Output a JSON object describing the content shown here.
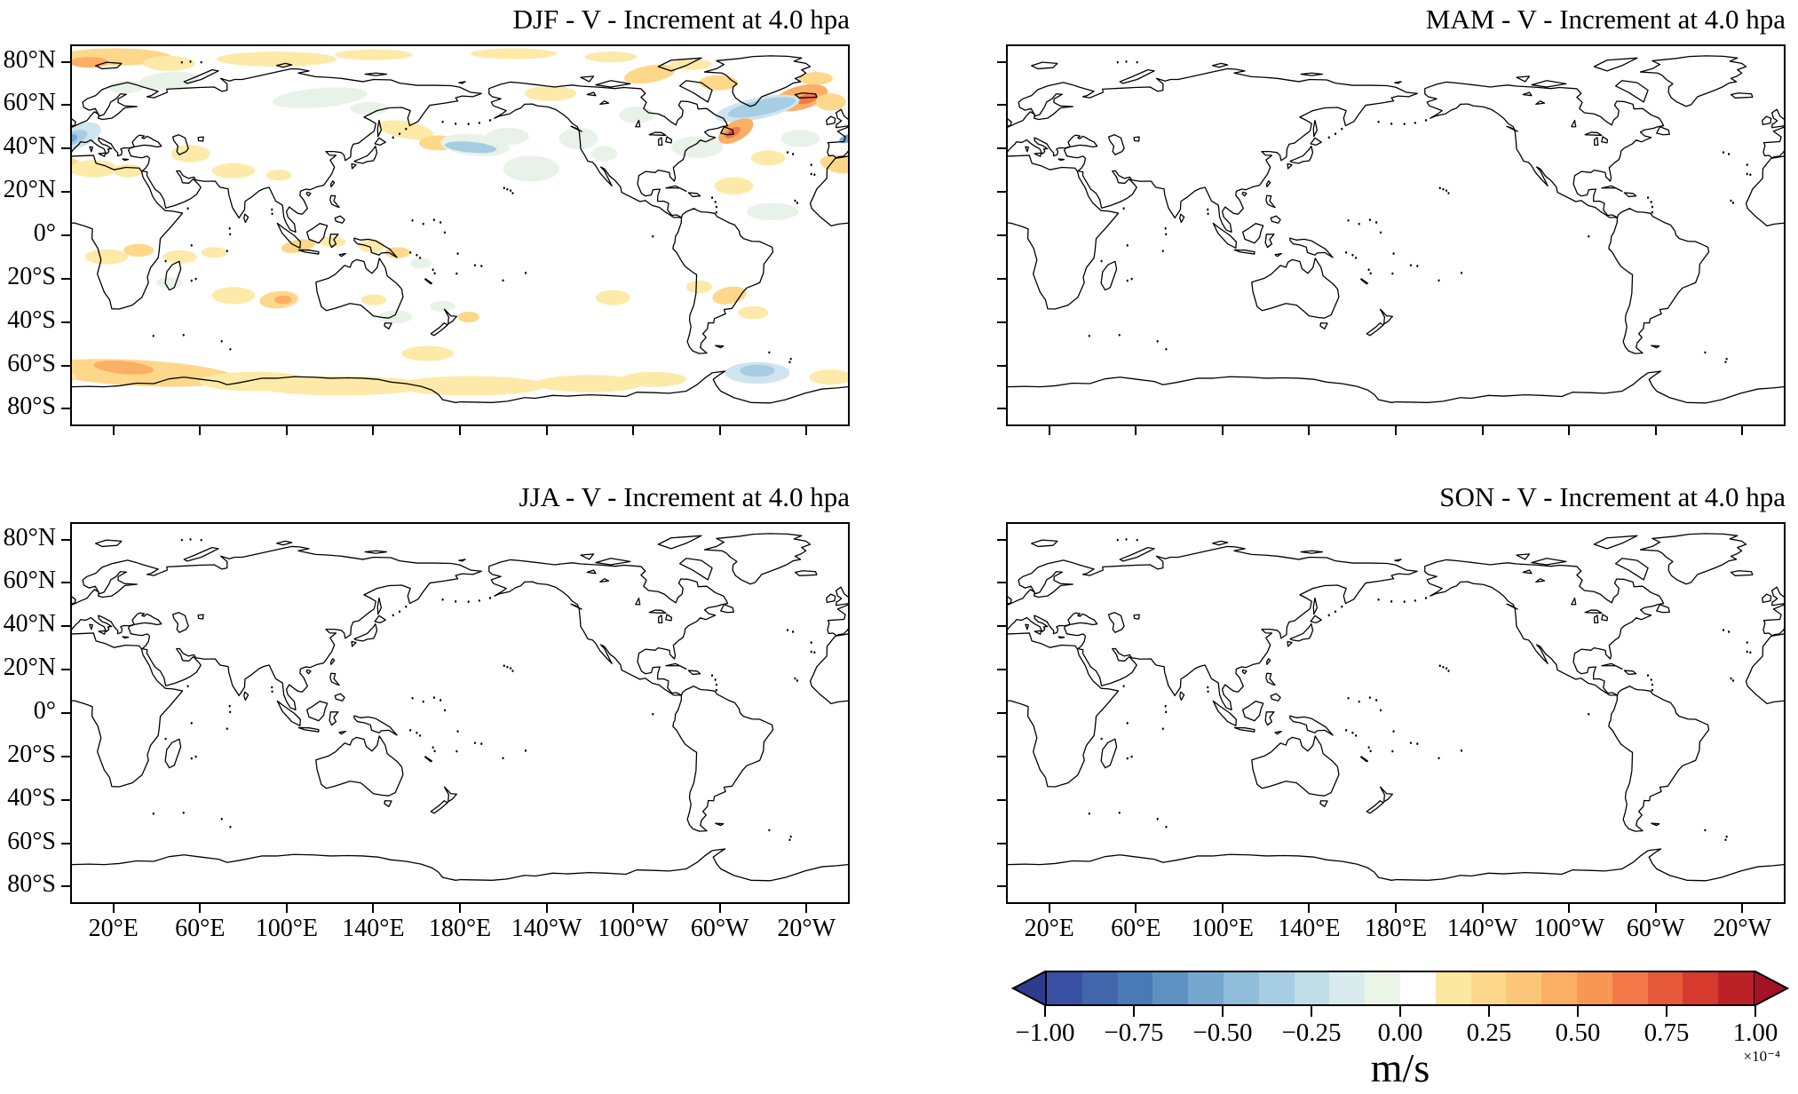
{
  "panels": [
    {
      "season": "DJF",
      "title": "DJF - V - Increment at 4.0 hpa"
    },
    {
      "season": "MAM",
      "title": "MAM - V - Increment at 4.0 hpa"
    },
    {
      "season": "JJA",
      "title": "JJA - V - Increment at 4.0 hpa"
    },
    {
      "season": "SON",
      "title": "SON - V - Increment at 4.0 hpa"
    }
  ],
  "axes": {
    "lat_tick_labels": [
      "80°N",
      "60°N",
      "40°N",
      "20°N",
      "0°",
      "20°S",
      "40°S",
      "60°S",
      "80°S"
    ],
    "lat_tick_values": [
      80,
      60,
      40,
      20,
      0,
      -20,
      -40,
      -60,
      -80
    ],
    "lon_tick_labels": [
      "20°E",
      "60°E",
      "100°E",
      "140°E",
      "180°E",
      "140°W",
      "100°W",
      "60°W",
      "20°W"
    ],
    "lon_tick_values": [
      20,
      60,
      100,
      140,
      180,
      220,
      260,
      300,
      340
    ]
  },
  "colorbar": {
    "unit": "m/s",
    "scale_note": "×10⁻⁴",
    "tick_labels": [
      "−1.00",
      "−0.75",
      "−0.50",
      "−0.25",
      "0.00",
      "0.25",
      "0.50",
      "0.75",
      "1.00"
    ],
    "tick_values": [
      -1.0,
      -0.75,
      -0.5,
      -0.25,
      0.0,
      0.25,
      0.5,
      0.75,
      1.0
    ],
    "segment_colors": [
      "#3a50a2",
      "#4166ac",
      "#4a7ab6",
      "#5f90c2",
      "#77a7ce",
      "#8fbcd9",
      "#a6cde1",
      "#c0dde8",
      "#d9ebec",
      "#ebf5e7",
      "#ffffff",
      "#fce8a0",
      "#fdd88a",
      "#fcc679",
      "#fbaf65",
      "#f89655",
      "#f37a48",
      "#e65a3a",
      "#d53a2c",
      "#bc2127"
    ],
    "arrow_left_color": "#2e3b8f",
    "arrow_right_color": "#a31227"
  },
  "chart_data": {
    "type": "map-contour",
    "projection": "equirectangular",
    "lon_range": [
      0,
      360
    ],
    "lat_range": [
      -88,
      88
    ],
    "variable": "V increment",
    "level_hpa": 4.0,
    "unit": "m/s",
    "value_scale": 0.0001,
    "contour_levels": [
      -1.0,
      -0.9,
      -0.8,
      -0.7,
      -0.6,
      -0.5,
      -0.4,
      -0.3,
      -0.2,
      -0.1,
      0.0,
      0.1,
      0.2,
      0.3,
      0.4,
      0.5,
      0.6,
      0.7,
      0.8,
      0.9,
      1.0
    ],
    "palette": {
      "y1": "#fdeaa8",
      "o2": "#fdd88a",
      "o3": "#fbaf65",
      "o4": "#f37a48",
      "r5": "#d53a2c",
      "g1": "#e8f2e9",
      "b2": "#cfe4ee",
      "b3": "#a6cde1",
      "b4": "#77a7ce",
      "b5": "#4a7ab6"
    },
    "palette_values": {
      "y1": 0.15,
      "o2": 0.25,
      "o3": 0.35,
      "o4": 0.45,
      "r5": 0.9,
      "g1": -0.15,
      "b2": -0.25,
      "b3": -0.35,
      "b4": -0.55,
      "b5": -0.75
    },
    "panels": [
      {
        "season": "DJF",
        "has_shading": true,
        "shading_blobs": [
          [
            20,
            83,
            26,
            4,
            0,
            "o2"
          ],
          [
            8,
            80.5,
            9,
            2.5,
            0,
            "o3"
          ],
          [
            45,
            80,
            12,
            3.5,
            0,
            "y1"
          ],
          [
            95,
            82,
            28,
            3.5,
            0,
            "y1"
          ],
          [
            140,
            84,
            18,
            2.5,
            0,
            "y1"
          ],
          [
            205,
            84.5,
            20,
            2.5,
            0,
            "y1"
          ],
          [
            250,
            83,
            12,
            2.5,
            0,
            "y1"
          ],
          [
            268,
            75,
            12,
            4,
            -10,
            "o2"
          ],
          [
            300,
            71,
            9,
            3.5,
            0,
            "o2"
          ],
          [
            287,
            79.5,
            10,
            2.5,
            0,
            "y1"
          ],
          [
            345,
            73,
            8,
            3,
            0,
            "o2"
          ],
          [
            338,
            64,
            13,
            5.5,
            -15,
            "o3"
          ],
          [
            341,
            63.5,
            5,
            2.2,
            -15,
            "o4"
          ],
          [
            352,
            62,
            7,
            4,
            0,
            "o2"
          ],
          [
            318,
            59,
            20,
            5,
            -12,
            "b2"
          ],
          [
            320,
            59.5,
            16,
            3.5,
            -12,
            "b3"
          ],
          [
            308,
            48.5,
            9,
            4.5,
            -30,
            "o3"
          ],
          [
            306.5,
            47.8,
            4,
            2,
            -30,
            "o4"
          ],
          [
            305.8,
            47.5,
            1.3,
            0.8,
            -30,
            "r5"
          ],
          [
            290,
            41,
            12,
            5,
            0,
            "g1"
          ],
          [
            338,
            45,
            9,
            4,
            0,
            "g1"
          ],
          [
            323,
            36,
            8,
            3.5,
            0,
            "y1"
          ],
          [
            325,
            11,
            12,
            4,
            0,
            "g1"
          ],
          [
            307,
            23,
            9,
            4,
            0,
            "y1"
          ],
          [
            2,
            46,
            12,
            5.5,
            -20,
            "b2"
          ],
          [
            0.5,
            45.3,
            7,
            3,
            -20,
            "b3"
          ],
          [
            359.3,
            44.9,
            3.5,
            1.8,
            -20,
            "b4"
          ],
          [
            45,
            72,
            14,
            4,
            -5,
            "g1"
          ],
          [
            25,
            69,
            8,
            3,
            0,
            "g1"
          ],
          [
            115,
            64,
            22,
            4.5,
            -5,
            "g1"
          ],
          [
            138,
            59,
            9,
            3,
            0,
            "g1"
          ],
          [
            356,
            33,
            9,
            4,
            10,
            "o2"
          ],
          [
            10,
            31,
            11,
            4,
            0,
            "y1"
          ],
          [
            26,
            30,
            7,
            3,
            0,
            "y1"
          ],
          [
            55,
            38,
            9,
            4,
            0,
            "y1"
          ],
          [
            75,
            30,
            10,
            3.5,
            0,
            "y1"
          ],
          [
            96,
            28,
            6,
            2.5,
            0,
            "y1"
          ],
          [
            155,
            49,
            13,
            4,
            10,
            "y1"
          ],
          [
            170,
            43,
            9,
            3.5,
            0,
            "o2"
          ],
          [
            187,
            42,
            16,
            5,
            5,
            "g1"
          ],
          [
            185,
            41,
            12,
            2.5,
            5,
            "b3"
          ],
          [
            202,
            46,
            10,
            4,
            0,
            "g1"
          ],
          [
            213,
            31,
            13,
            6,
            0,
            "g1"
          ],
          [
            235,
            45,
            9,
            5,
            0,
            "g1"
          ],
          [
            247,
            38,
            6,
            3.5,
            0,
            "g1"
          ],
          [
            222,
            66,
            12,
            3.5,
            0,
            "y1"
          ],
          [
            262,
            56,
            8,
            4,
            0,
            "g1"
          ],
          [
            16,
            -10,
            10,
            3.5,
            0,
            "y1"
          ],
          [
            31,
            -7,
            7,
            3,
            0,
            "o2"
          ],
          [
            50,
            -10,
            8,
            3,
            0,
            "y1"
          ],
          [
            66,
            -8,
            6,
            2.5,
            0,
            "y1"
          ],
          [
            105,
            -5,
            8,
            3,
            -10,
            "o2"
          ],
          [
            121,
            -3,
            6,
            2.5,
            0,
            "y1"
          ],
          [
            139,
            -5,
            6,
            3,
            0,
            "y1"
          ],
          [
            151,
            -8,
            6,
            2.5,
            0,
            "o2"
          ],
          [
            162,
            -13,
            5,
            2.5,
            0,
            "g1"
          ],
          [
            75,
            -28,
            10,
            4,
            0,
            "y1"
          ],
          [
            96,
            -30,
            9,
            4,
            -5,
            "o2"
          ],
          [
            98,
            -30,
            4,
            2,
            0,
            "o3"
          ],
          [
            45,
            -22,
            6,
            2.5,
            0,
            "g1"
          ],
          [
            150,
            -38,
            8,
            3,
            0,
            "g1"
          ],
          [
            172,
            -33,
            6,
            2.5,
            0,
            "g1"
          ],
          [
            184,
            -38,
            5,
            2.5,
            0,
            "o2"
          ],
          [
            140,
            -30,
            6,
            2.5,
            0,
            "y1"
          ],
          [
            305,
            -28,
            8,
            4,
            -10,
            "o2"
          ],
          [
            316,
            -36,
            7,
            3,
            0,
            "y1"
          ],
          [
            291,
            -24,
            6,
            3,
            0,
            "y1"
          ],
          [
            251,
            -29,
            8,
            3.5,
            0,
            "y1"
          ],
          [
            30,
            -64,
            46,
            6,
            3,
            "o2"
          ],
          [
            24,
            -61.5,
            14,
            3,
            5,
            "o3"
          ],
          [
            85,
            -68,
            26,
            4.5,
            0,
            "y1"
          ],
          [
            125,
            -70,
            40,
            4.5,
            0,
            "y1"
          ],
          [
            185,
            -70,
            35,
            4.5,
            0,
            "y1"
          ],
          [
            240,
            -69,
            25,
            4,
            0,
            "y1"
          ],
          [
            270,
            -67,
            15,
            3.5,
            0,
            "y1"
          ],
          [
            318,
            -64,
            15,
            5,
            0,
            "b2"
          ],
          [
            318,
            -63,
            8,
            2.8,
            0,
            "b3"
          ],
          [
            352,
            -66,
            10,
            3.5,
            0,
            "y1"
          ],
          [
            165,
            -55,
            12,
            3.5,
            0,
            "y1"
          ]
        ]
      },
      {
        "season": "MAM",
        "has_shading": false,
        "shading_blobs": []
      },
      {
        "season": "JJA",
        "has_shading": false,
        "shading_blobs": []
      },
      {
        "season": "SON",
        "has_shading": false,
        "shading_blobs": []
      }
    ]
  }
}
